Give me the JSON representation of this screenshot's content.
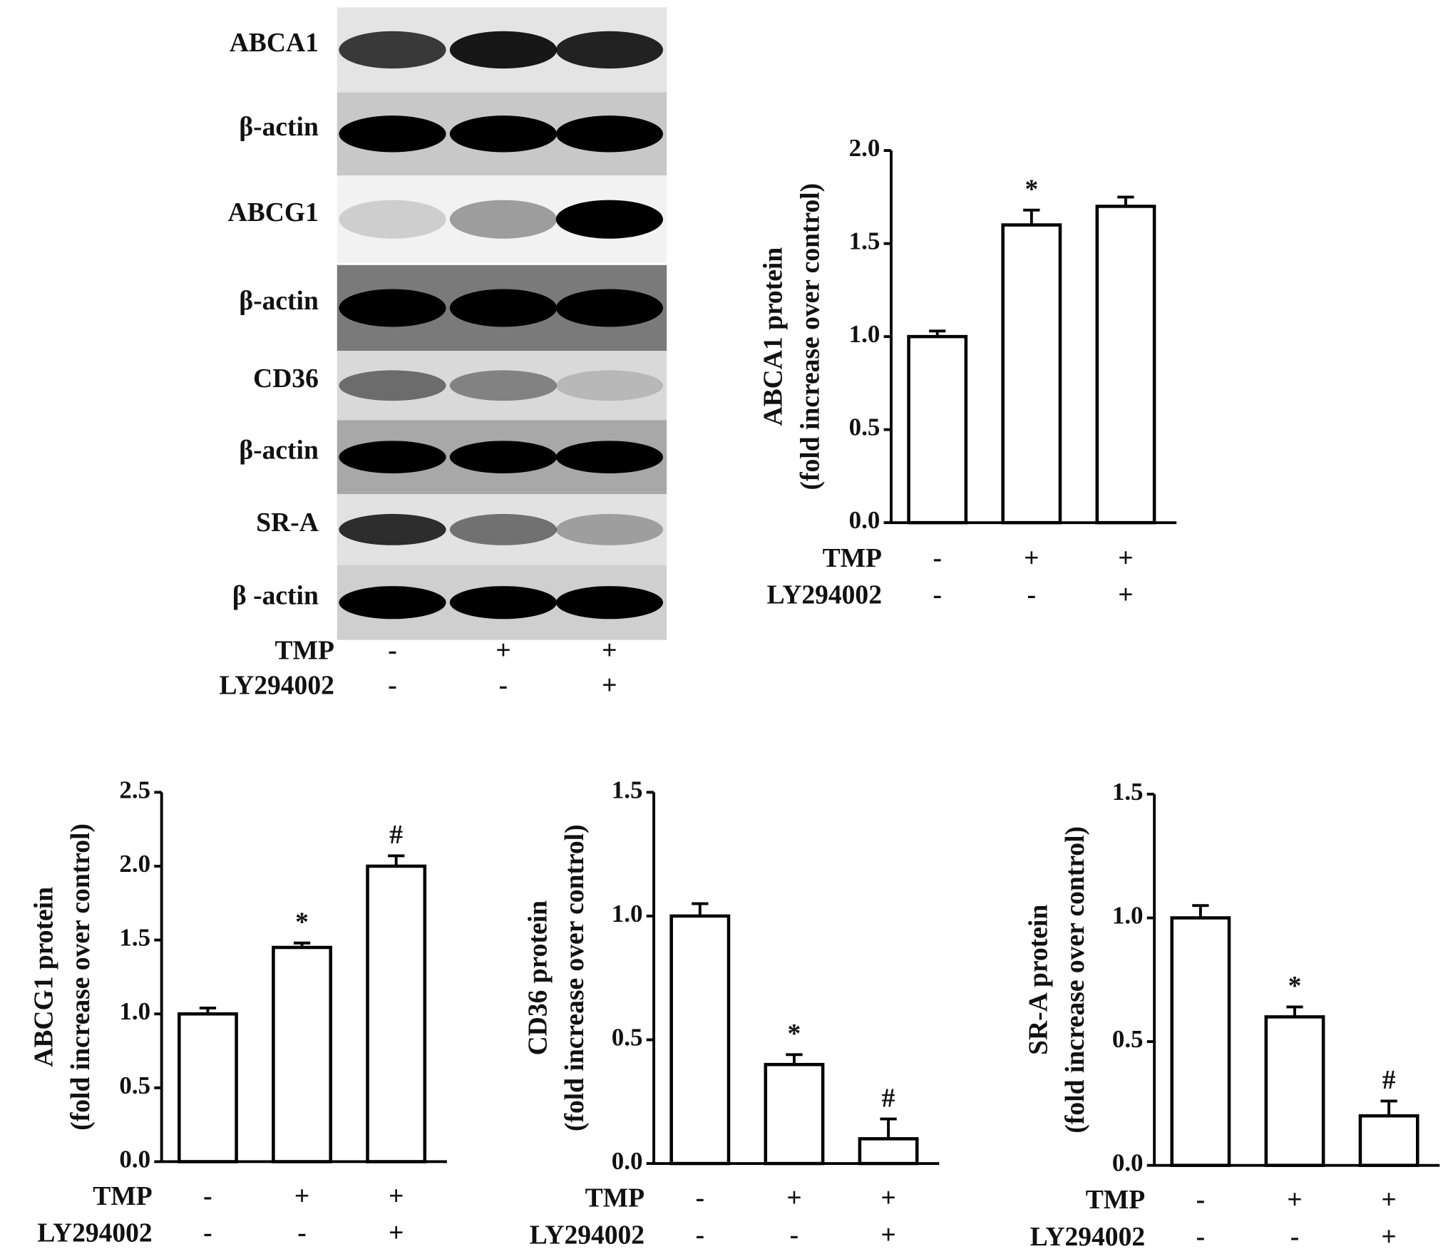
{
  "blot": {
    "labels": [
      "ABCA1",
      "β-actin",
      "ABCG1",
      "β-actin",
      "CD36",
      "β-actin",
      "SR-A",
      "β -actin"
    ],
    "treatments": [
      {
        "name": "TMP",
        "values": [
          "-",
          "+",
          "+"
        ]
      },
      {
        "name": "LY294002",
        "values": [
          "-",
          "-",
          "+"
        ]
      }
    ]
  },
  "chart_data": [
    {
      "type": "bar",
      "ylabel": [
        "ABCA1 protein",
        "(fold increase over control)"
      ],
      "values": [
        1.0,
        1.6,
        1.7
      ],
      "errors": [
        0.03,
        0.08,
        0.05
      ],
      "annotations": [
        null,
        "*",
        null
      ],
      "ylim": [
        0,
        2
      ],
      "yticks": [
        {
          "value": 0,
          "label": "0.0"
        },
        {
          "value": 0.5,
          "label": "0.5"
        },
        {
          "value": 1,
          "label": "1.0"
        },
        {
          "value": 1.5,
          "label": "1.5"
        },
        {
          "value": 2,
          "label": "2.0"
        }
      ],
      "treatments": [
        {
          "name": "TMP",
          "values": [
            "-",
            "+",
            "+"
          ]
        },
        {
          "name": "LY294002",
          "values": [
            "-",
            "-",
            "+"
          ]
        }
      ],
      "color": "#ffffff"
    },
    {
      "type": "bar",
      "ylabel": [
        "ABCG1 protein",
        "(fold increase over control)"
      ],
      "values": [
        1.0,
        1.45,
        2.0
      ],
      "errors": [
        0.04,
        0.03,
        0.07
      ],
      "annotations": [
        null,
        "*",
        "#"
      ],
      "ylim": [
        0,
        2.5
      ],
      "yticks": [
        {
          "value": 0,
          "label": "0.0"
        },
        {
          "value": 0.5,
          "label": "0.5"
        },
        {
          "value": 1,
          "label": "1.0"
        },
        {
          "value": 1.5,
          "label": "1.5"
        },
        {
          "value": 2,
          "label": "2.0"
        },
        {
          "value": 2.5,
          "label": "2.5"
        }
      ],
      "treatments": [
        {
          "name": "TMP",
          "values": [
            "-",
            "+",
            "+"
          ]
        },
        {
          "name": "LY294002",
          "values": [
            "-",
            "-",
            "+"
          ]
        }
      ],
      "color": "#ffffff"
    },
    {
      "type": "bar",
      "ylabel": [
        "CD36 protein",
        "(fold increase over control)"
      ],
      "values": [
        1.0,
        0.4,
        0.1
      ],
      "errors": [
        0.05,
        0.04,
        0.08
      ],
      "annotations": [
        null,
        "*",
        "#"
      ],
      "ylim": [
        0,
        1.5
      ],
      "yticks": [
        {
          "value": 0,
          "label": "0.0"
        },
        {
          "value": 0.5,
          "label": "0.5"
        },
        {
          "value": 1,
          "label": "1.0"
        },
        {
          "value": 1.5,
          "label": "1.5"
        }
      ],
      "treatments": [
        {
          "name": "TMP",
          "values": [
            "-",
            "+",
            "+"
          ]
        },
        {
          "name": "LY294002",
          "values": [
            "-",
            "-",
            "+"
          ]
        }
      ],
      "color": "#ffffff"
    },
    {
      "type": "bar",
      "ylabel": [
        "SR-A protein",
        "(fold increase over control)"
      ],
      "values": [
        1.0,
        0.6,
        0.2
      ],
      "errors": [
        0.05,
        0.04,
        0.06
      ],
      "annotations": [
        null,
        "*",
        "#"
      ],
      "ylim": [
        0,
        1.5
      ],
      "yticks": [
        {
          "value": 0,
          "label": "0.0"
        },
        {
          "value": 0.5,
          "label": "0.5"
        },
        {
          "value": 1,
          "label": "1.0"
        },
        {
          "value": 1.5,
          "label": "1.5"
        }
      ],
      "treatments": [
        {
          "name": "TMP",
          "values": [
            "-",
            "+",
            "+"
          ]
        },
        {
          "name": "LY294002",
          "values": [
            "-",
            "-",
            "+"
          ]
        }
      ],
      "color": "#ffffff"
    }
  ]
}
